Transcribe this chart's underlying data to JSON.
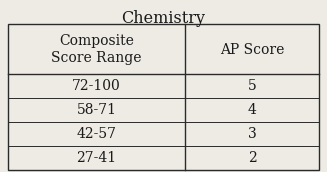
{
  "title": "Chemistry",
  "col1_header_line1": "Composite",
  "col1_header_line2": "Score Range",
  "col2_header": "AP Score",
  "rows": [
    [
      "72-100",
      "5"
    ],
    [
      "58-71",
      "4"
    ],
    [
      "42-57",
      "3"
    ],
    [
      "27-41",
      "2"
    ]
  ],
  "bg_color": "#eeebe5",
  "line_color": "#2a2a2a",
  "text_color": "#1a1a1a",
  "title_fontsize": 11.5,
  "header_fontsize": 10,
  "cell_fontsize": 10,
  "font_family": "DejaVu Serif"
}
